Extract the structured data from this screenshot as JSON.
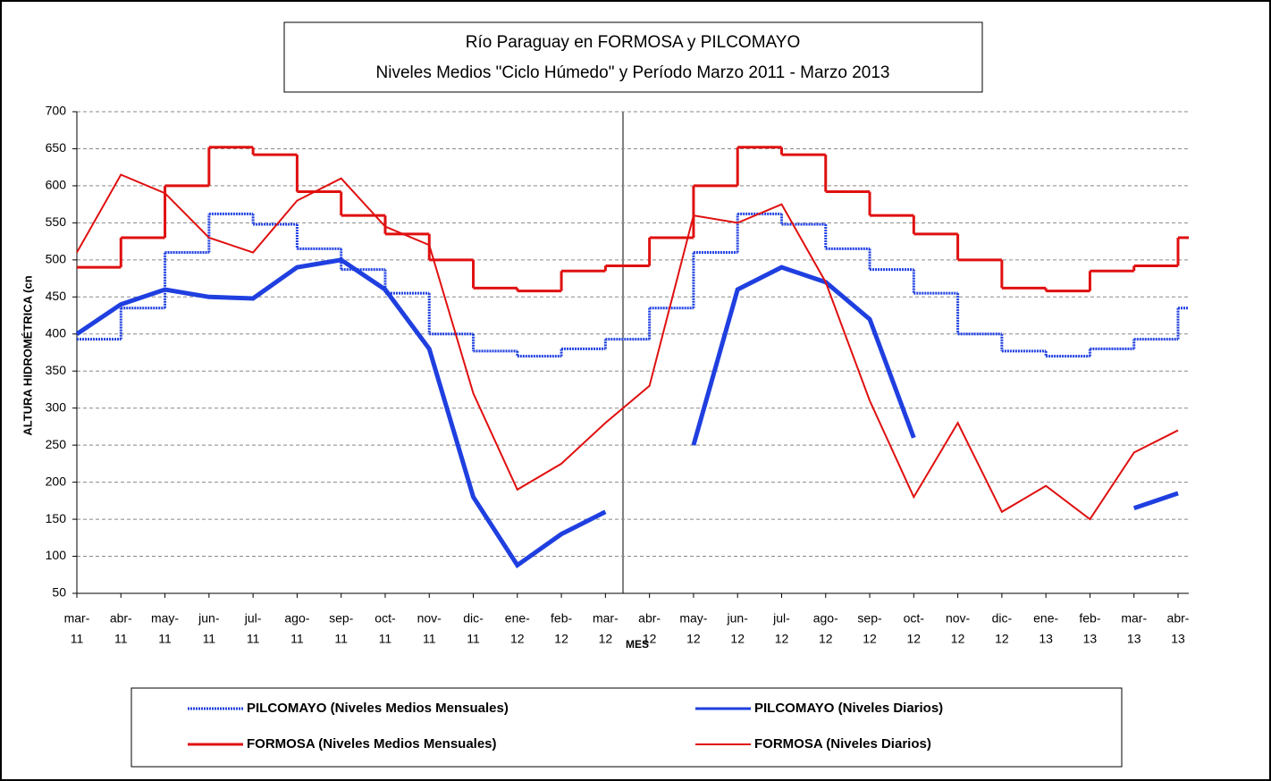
{
  "chart_data": {
    "type": "line",
    "title": "Río Paraguay en FORMOSA y PILCOMAYO",
    "subtitle": "Niveles Medios \"Ciclo Húmedo\" y Período Marzo 2011 - Marzo 2013",
    "y_label": "ALTURA HIDROMÉTRICA (cn",
    "x_label": "MES",
    "categories": [
      [
        "mar-",
        "11"
      ],
      [
        "abr-",
        "11"
      ],
      [
        "may-",
        "11"
      ],
      [
        "jun-",
        "11"
      ],
      [
        "jul-",
        "11"
      ],
      [
        "ago-",
        "11"
      ],
      [
        "sep-",
        "11"
      ],
      [
        "oct-",
        "11"
      ],
      [
        "nov-",
        "11"
      ],
      [
        "dic-",
        "11"
      ],
      [
        "ene-",
        "12"
      ],
      [
        "feb-",
        "12"
      ],
      [
        "mar-",
        "12"
      ],
      [
        "abr-",
        "12"
      ],
      [
        "may-",
        "12"
      ],
      [
        "jun-",
        "12"
      ],
      [
        "jul-",
        "12"
      ],
      [
        "ago-",
        "12"
      ],
      [
        "sep-",
        "12"
      ],
      [
        "oct-",
        "12"
      ],
      [
        "nov-",
        "12"
      ],
      [
        "dic-",
        "12"
      ],
      [
        "ene-",
        "13"
      ],
      [
        "feb-",
        "13"
      ],
      [
        "mar-",
        "13"
      ],
      [
        "abr-",
        "13"
      ]
    ],
    "ylim": [
      50,
      700
    ],
    "yticks": [
      50,
      100,
      150,
      200,
      250,
      300,
      350,
      400,
      450,
      500,
      550,
      600,
      650,
      700
    ],
    "grid": true,
    "series": [
      {
        "name": "PILCOMAYO (Niveles Medios Mensuales)",
        "color": "#1f3fe0",
        "line_style": "step-dotted",
        "values": [
          393,
          435,
          510,
          562,
          548,
          515,
          487,
          455,
          400,
          377,
          370,
          380,
          393,
          435,
          510,
          562,
          548,
          515,
          487,
          455,
          400,
          377,
          370,
          380,
          393,
          435
        ]
      },
      {
        "name": "PILCOMAYO (Niveles Diarios)",
        "color": "#1f3fe0",
        "line_style": "thick",
        "values": [
          400,
          440,
          460,
          450,
          448,
          490,
          500,
          460,
          380,
          180,
          88,
          130,
          160,
          null,
          250,
          460,
          490,
          470,
          420,
          260,
          null,
          null,
          null,
          null,
          165,
          185
        ]
      },
      {
        "name": "FORMOSA (Niveles Medios Mensuales)",
        "color": "#e01010",
        "line_style": "step",
        "values": [
          490,
          530,
          600,
          652,
          642,
          592,
          560,
          535,
          500,
          462,
          458,
          485,
          492,
          530,
          600,
          652,
          642,
          592,
          560,
          535,
          500,
          462,
          458,
          485,
          492,
          530
        ]
      },
      {
        "name": "FORMOSA (Niveles Diarios)",
        "color": "#e01010",
        "line_style": "thin",
        "values": [
          510,
          615,
          590,
          530,
          510,
          580,
          610,
          545,
          520,
          320,
          190,
          225,
          280,
          330,
          560,
          550,
          575,
          470,
          310,
          180,
          280,
          160,
          195,
          150,
          240,
          270
        ]
      }
    ]
  }
}
